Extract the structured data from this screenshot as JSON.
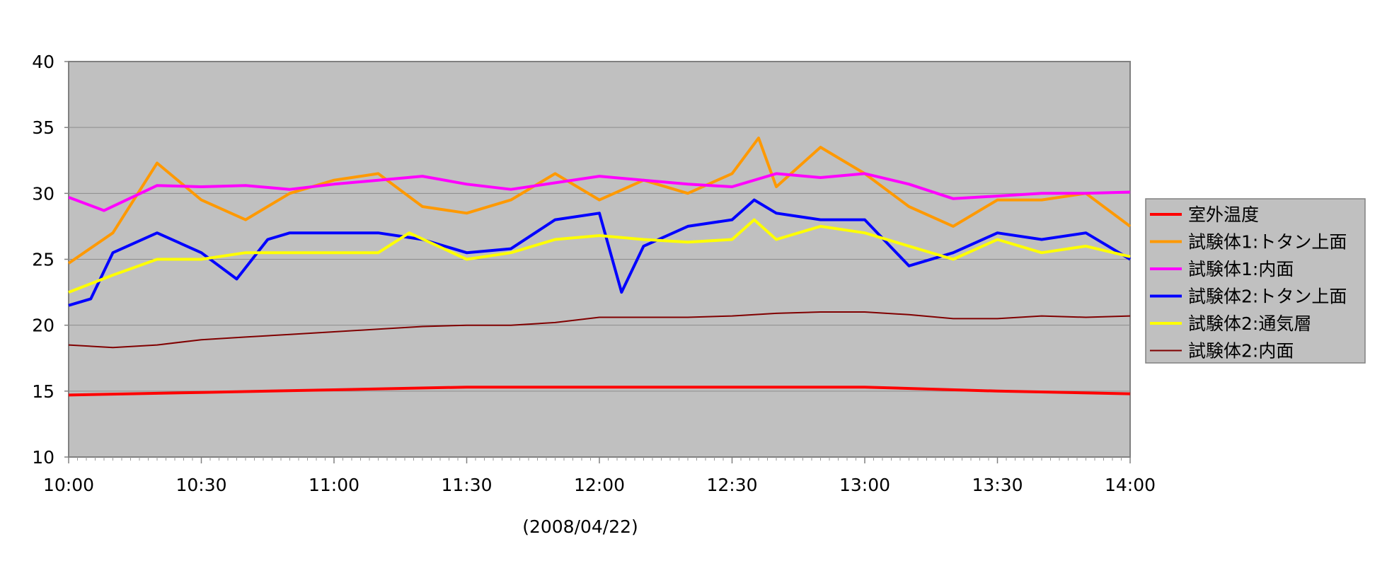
{
  "chart_data": {
    "type": "line",
    "title": "",
    "xlabel": "(2008/04/22)",
    "ylabel": "",
    "ylim": [
      10,
      40
    ],
    "yticks": [
      10,
      15,
      20,
      25,
      30,
      35,
      40
    ],
    "xlim": [
      "10:00",
      "14:00"
    ],
    "xticks": [
      "10:00",
      "10:30",
      "11:00",
      "11:30",
      "12:00",
      "12:30",
      "13:00",
      "13:30",
      "14:00"
    ],
    "grid": "horizontal",
    "legend_position": "right",
    "plot_background": "#c0c0c0",
    "series": [
      {
        "name": "室外温度",
        "color": "#ff0000",
        "width": 4,
        "x": [
          "10:00",
          "10:30",
          "11:00",
          "11:30",
          "12:00",
          "12:30",
          "13:00",
          "13:30",
          "14:00"
        ],
        "y": [
          14.7,
          14.9,
          15.1,
          15.3,
          15.3,
          15.3,
          15.3,
          15.0,
          14.8
        ]
      },
      {
        "name": "試験体1:トタン上面",
        "color": "#ff9900",
        "width": 4,
        "x": [
          "10:00",
          "10:10",
          "10:20",
          "10:30",
          "10:40",
          "10:50",
          "11:00",
          "11:10",
          "11:20",
          "11:30",
          "11:40",
          "11:50",
          "12:00",
          "12:10",
          "12:20",
          "12:30",
          "12:36",
          "12:40",
          "12:50",
          "13:00",
          "13:10",
          "13:20",
          "13:30",
          "13:40",
          "13:50",
          "14:00"
        ],
        "y": [
          24.7,
          27.0,
          32.3,
          29.5,
          28.0,
          30.0,
          31.0,
          31.5,
          29.0,
          28.5,
          29.5,
          31.5,
          29.5,
          31.0,
          30.0,
          31.5,
          34.2,
          30.5,
          33.5,
          31.5,
          29.0,
          27.5,
          29.5,
          29.5,
          30.0,
          27.5
        ]
      },
      {
        "name": "試験体1:内面",
        "color": "#ff00ff",
        "width": 4,
        "x": [
          "10:00",
          "10:08",
          "10:20",
          "10:30",
          "10:40",
          "10:50",
          "11:00",
          "11:10",
          "11:20",
          "11:30",
          "11:40",
          "11:50",
          "12:00",
          "12:10",
          "12:20",
          "12:30",
          "12:40",
          "12:50",
          "13:00",
          "13:10",
          "13:20",
          "13:30",
          "13:40",
          "13:50",
          "14:00"
        ],
        "y": [
          29.7,
          28.7,
          30.6,
          30.5,
          30.6,
          30.3,
          30.7,
          31.0,
          31.3,
          30.7,
          30.3,
          30.8,
          31.3,
          31.0,
          30.7,
          30.5,
          31.5,
          31.2,
          31.5,
          30.7,
          29.6,
          29.8,
          30.0,
          30.0,
          30.1
        ]
      },
      {
        "name": "試験体2:トタン上面",
        "color": "#0000ff",
        "width": 4,
        "x": [
          "10:00",
          "10:05",
          "10:10",
          "10:20",
          "10:30",
          "10:38",
          "10:45",
          "10:50",
          "11:00",
          "11:10",
          "11:20",
          "11:30",
          "11:40",
          "11:50",
          "12:00",
          "12:05",
          "12:10",
          "12:20",
          "12:30",
          "12:35",
          "12:40",
          "12:50",
          "13:00",
          "13:10",
          "13:20",
          "13:30",
          "13:40",
          "13:50",
          "14:00"
        ],
        "y": [
          21.5,
          22.0,
          25.5,
          27.0,
          25.5,
          23.5,
          26.5,
          27.0,
          27.0,
          27.0,
          26.5,
          25.5,
          25.8,
          28.0,
          28.5,
          22.5,
          26.0,
          27.5,
          28.0,
          29.5,
          28.5,
          28.0,
          28.0,
          24.5,
          25.5,
          27.0,
          26.5,
          27.0,
          25.0
        ]
      },
      {
        "name": "試験体2:通気層",
        "color": "#ffff00",
        "width": 4,
        "x": [
          "10:00",
          "10:10",
          "10:20",
          "10:30",
          "10:40",
          "10:50",
          "11:00",
          "11:10",
          "11:17",
          "11:30",
          "11:40",
          "11:50",
          "12:00",
          "12:10",
          "12:20",
          "12:30",
          "12:35",
          "12:40",
          "12:50",
          "13:00",
          "13:10",
          "13:20",
          "13:30",
          "13:40",
          "13:50",
          "14:00"
        ],
        "y": [
          22.5,
          23.8,
          25.0,
          25.0,
          25.5,
          25.5,
          25.5,
          25.5,
          27.0,
          25.0,
          25.5,
          26.5,
          26.8,
          26.5,
          26.3,
          26.5,
          28.0,
          26.5,
          27.5,
          27.0,
          26.0,
          25.0,
          26.5,
          25.5,
          26.0,
          25.2
        ]
      },
      {
        "name": "試験体2:内面",
        "color": "#800000",
        "width": 2,
        "x": [
          "10:00",
          "10:10",
          "10:20",
          "10:30",
          "10:40",
          "10:50",
          "11:00",
          "11:10",
          "11:20",
          "11:30",
          "11:40",
          "11:50",
          "12:00",
          "12:10",
          "12:20",
          "12:30",
          "12:40",
          "12:50",
          "13:00",
          "13:10",
          "13:20",
          "13:30",
          "13:40",
          "13:50",
          "14:00"
        ],
        "y": [
          18.5,
          18.3,
          18.5,
          18.9,
          19.1,
          19.3,
          19.5,
          19.7,
          19.9,
          20.0,
          20.0,
          20.2,
          20.6,
          20.6,
          20.6,
          20.7,
          20.9,
          21.0,
          21.0,
          20.8,
          20.5,
          20.5,
          20.7,
          20.6,
          20.7
        ]
      }
    ]
  }
}
